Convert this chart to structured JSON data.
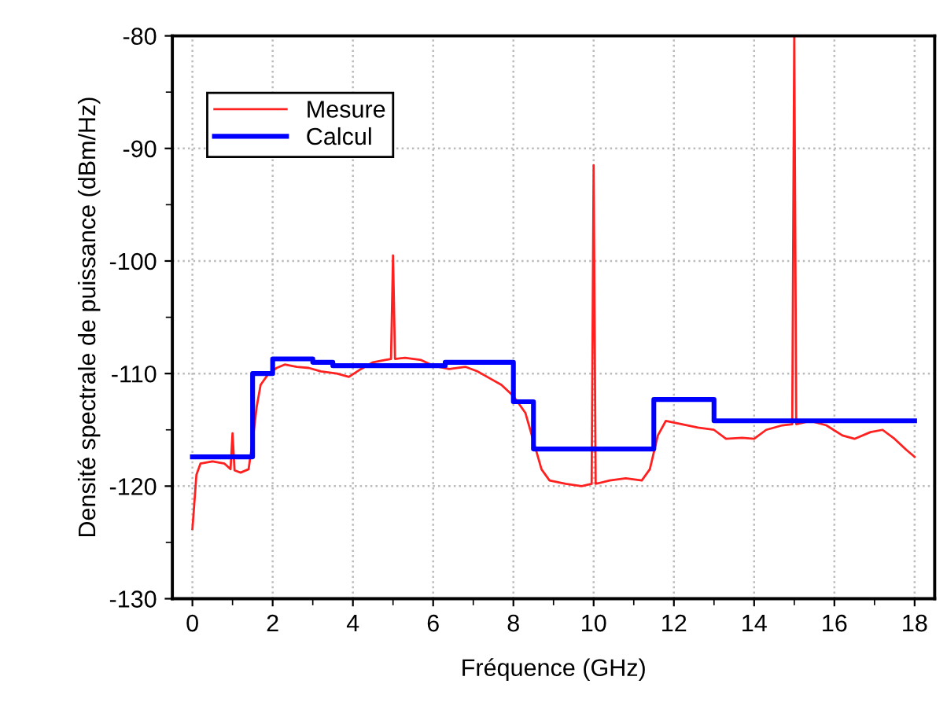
{
  "chart_data": {
    "type": "line",
    "xlabel": "Fréquence (GHz)",
    "ylabel": "Densité spectrale de puissance (dBm/Hz)",
    "xlim": [
      -0.5,
      18.5
    ],
    "xticks": [
      0,
      2,
      4,
      6,
      8,
      10,
      12,
      14,
      16,
      18
    ],
    "ylim": [
      -130,
      -80
    ],
    "yticks": [
      -130,
      -120,
      -110,
      -100,
      -90,
      -80
    ],
    "grid": true,
    "legend": "top left",
    "series": [
      {
        "name": "Mesure",
        "color": "#ff2020",
        "x": [
          0,
          0.1,
          0.2,
          0.5,
          0.8,
          0.95,
          1.0,
          1.05,
          1.2,
          1.4,
          1.5,
          1.6,
          1.7,
          1.9,
          2.1,
          2.3,
          2.6,
          2.9,
          3.2,
          3.6,
          3.9,
          4.2,
          4.5,
          4.8,
          4.95,
          5.0,
          5.05,
          5.3,
          5.7,
          6.0,
          6.4,
          6.8,
          7.1,
          7.4,
          7.7,
          8.0,
          8.3,
          8.5,
          8.7,
          8.9,
          9.3,
          9.7,
          9.95,
          10.0,
          10.05,
          10.4,
          10.8,
          11.2,
          11.4,
          11.6,
          11.8,
          12.2,
          12.6,
          13.0,
          13.3,
          13.7,
          14.0,
          14.3,
          14.7,
          14.95,
          15.0,
          15.05,
          15.4,
          15.8,
          16.2,
          16.5,
          16.9,
          17.2,
          17.5,
          17.8,
          18.0
        ],
        "values": [
          -123.8,
          -119,
          -118,
          -117.8,
          -118,
          -118.5,
          -115.3,
          -118.6,
          -118.8,
          -118.5,
          -116,
          -113,
          -111,
          -110,
          -109.5,
          -109.2,
          -109.4,
          -109.5,
          -109.8,
          -110,
          -110.3,
          -109.6,
          -109,
          -108.8,
          -108.7,
          -99.5,
          -108.7,
          -108.6,
          -108.8,
          -109.3,
          -109.6,
          -109.4,
          -109.8,
          -110.4,
          -111,
          -112,
          -113.5,
          -116,
          -118.5,
          -119.5,
          -119.8,
          -120,
          -119.8,
          -91.5,
          -119.8,
          -119.5,
          -119.3,
          -119.5,
          -118.5,
          -115.5,
          -114.2,
          -114.5,
          -114.8,
          -115,
          -115.8,
          -115.7,
          -115.8,
          -115,
          -114.6,
          -114.5,
          -80,
          -114.5,
          -114.2,
          -114.6,
          -115.5,
          -115.8,
          -115.2,
          -115,
          -115.8,
          -116.8,
          -117.4
        ]
      },
      {
        "name": "Calcul",
        "type": "step",
        "color": "#0000ff",
        "x": [
          0,
          1.5,
          2,
          3,
          3.5,
          6.3,
          8,
          8.5,
          11.5,
          13,
          18
        ],
        "values": [
          -117.4,
          -110,
          -108.7,
          -109,
          -109.3,
          -109,
          -112.5,
          -116.7,
          -112.3,
          -114.2,
          -114.2
        ]
      }
    ]
  }
}
